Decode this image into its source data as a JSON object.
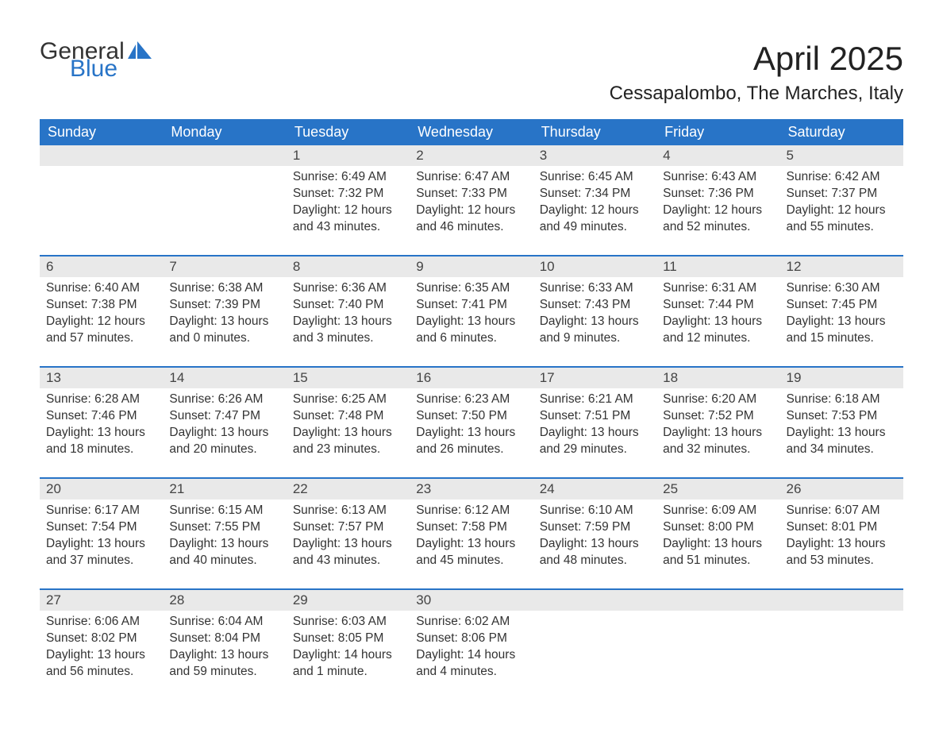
{
  "logo": {
    "word1": "General",
    "word2": "Blue",
    "color1": "#333333",
    "color2": "#2874c7"
  },
  "title": "April 2025",
  "location": "Cessapalombo, The Marches, Italy",
  "style": {
    "header_bg": "#2874c7",
    "header_text": "#ffffff",
    "daynum_bg": "#e9e9e9",
    "week_border": "#2874c7",
    "body_text": "#333333",
    "page_bg": "#ffffff",
    "title_fontsize": 42,
    "location_fontsize": 24,
    "header_fontsize": 18,
    "body_fontsize": 15.5
  },
  "columns": [
    "Sunday",
    "Monday",
    "Tuesday",
    "Wednesday",
    "Thursday",
    "Friday",
    "Saturday"
  ],
  "weeks": [
    [
      {
        "n": "",
        "lines": []
      },
      {
        "n": "",
        "lines": []
      },
      {
        "n": "1",
        "lines": [
          "Sunrise: 6:49 AM",
          "Sunset: 7:32 PM",
          "Daylight: 12 hours and 43 minutes."
        ]
      },
      {
        "n": "2",
        "lines": [
          "Sunrise: 6:47 AM",
          "Sunset: 7:33 PM",
          "Daylight: 12 hours and 46 minutes."
        ]
      },
      {
        "n": "3",
        "lines": [
          "Sunrise: 6:45 AM",
          "Sunset: 7:34 PM",
          "Daylight: 12 hours and 49 minutes."
        ]
      },
      {
        "n": "4",
        "lines": [
          "Sunrise: 6:43 AM",
          "Sunset: 7:36 PM",
          "Daylight: 12 hours and 52 minutes."
        ]
      },
      {
        "n": "5",
        "lines": [
          "Sunrise: 6:42 AM",
          "Sunset: 7:37 PM",
          "Daylight: 12 hours and 55 minutes."
        ]
      }
    ],
    [
      {
        "n": "6",
        "lines": [
          "Sunrise: 6:40 AM",
          "Sunset: 7:38 PM",
          "Daylight: 12 hours and 57 minutes."
        ]
      },
      {
        "n": "7",
        "lines": [
          "Sunrise: 6:38 AM",
          "Sunset: 7:39 PM",
          "Daylight: 13 hours and 0 minutes."
        ]
      },
      {
        "n": "8",
        "lines": [
          "Sunrise: 6:36 AM",
          "Sunset: 7:40 PM",
          "Daylight: 13 hours and 3 minutes."
        ]
      },
      {
        "n": "9",
        "lines": [
          "Sunrise: 6:35 AM",
          "Sunset: 7:41 PM",
          "Daylight: 13 hours and 6 minutes."
        ]
      },
      {
        "n": "10",
        "lines": [
          "Sunrise: 6:33 AM",
          "Sunset: 7:43 PM",
          "Daylight: 13 hours and 9 minutes."
        ]
      },
      {
        "n": "11",
        "lines": [
          "Sunrise: 6:31 AM",
          "Sunset: 7:44 PM",
          "Daylight: 13 hours and 12 minutes."
        ]
      },
      {
        "n": "12",
        "lines": [
          "Sunrise: 6:30 AM",
          "Sunset: 7:45 PM",
          "Daylight: 13 hours and 15 minutes."
        ]
      }
    ],
    [
      {
        "n": "13",
        "lines": [
          "Sunrise: 6:28 AM",
          "Sunset: 7:46 PM",
          "Daylight: 13 hours and 18 minutes."
        ]
      },
      {
        "n": "14",
        "lines": [
          "Sunrise: 6:26 AM",
          "Sunset: 7:47 PM",
          "Daylight: 13 hours and 20 minutes."
        ]
      },
      {
        "n": "15",
        "lines": [
          "Sunrise: 6:25 AM",
          "Sunset: 7:48 PM",
          "Daylight: 13 hours and 23 minutes."
        ]
      },
      {
        "n": "16",
        "lines": [
          "Sunrise: 6:23 AM",
          "Sunset: 7:50 PM",
          "Daylight: 13 hours and 26 minutes."
        ]
      },
      {
        "n": "17",
        "lines": [
          "Sunrise: 6:21 AM",
          "Sunset: 7:51 PM",
          "Daylight: 13 hours and 29 minutes."
        ]
      },
      {
        "n": "18",
        "lines": [
          "Sunrise: 6:20 AM",
          "Sunset: 7:52 PM",
          "Daylight: 13 hours and 32 minutes."
        ]
      },
      {
        "n": "19",
        "lines": [
          "Sunrise: 6:18 AM",
          "Sunset: 7:53 PM",
          "Daylight: 13 hours and 34 minutes."
        ]
      }
    ],
    [
      {
        "n": "20",
        "lines": [
          "Sunrise: 6:17 AM",
          "Sunset: 7:54 PM",
          "Daylight: 13 hours and 37 minutes."
        ]
      },
      {
        "n": "21",
        "lines": [
          "Sunrise: 6:15 AM",
          "Sunset: 7:55 PM",
          "Daylight: 13 hours and 40 minutes."
        ]
      },
      {
        "n": "22",
        "lines": [
          "Sunrise: 6:13 AM",
          "Sunset: 7:57 PM",
          "Daylight: 13 hours and 43 minutes."
        ]
      },
      {
        "n": "23",
        "lines": [
          "Sunrise: 6:12 AM",
          "Sunset: 7:58 PM",
          "Daylight: 13 hours and 45 minutes."
        ]
      },
      {
        "n": "24",
        "lines": [
          "Sunrise: 6:10 AM",
          "Sunset: 7:59 PM",
          "Daylight: 13 hours and 48 minutes."
        ]
      },
      {
        "n": "25",
        "lines": [
          "Sunrise: 6:09 AM",
          "Sunset: 8:00 PM",
          "Daylight: 13 hours and 51 minutes."
        ]
      },
      {
        "n": "26",
        "lines": [
          "Sunrise: 6:07 AM",
          "Sunset: 8:01 PM",
          "Daylight: 13 hours and 53 minutes."
        ]
      }
    ],
    [
      {
        "n": "27",
        "lines": [
          "Sunrise: 6:06 AM",
          "Sunset: 8:02 PM",
          "Daylight: 13 hours and 56 minutes."
        ]
      },
      {
        "n": "28",
        "lines": [
          "Sunrise: 6:04 AM",
          "Sunset: 8:04 PM",
          "Daylight: 13 hours and 59 minutes."
        ]
      },
      {
        "n": "29",
        "lines": [
          "Sunrise: 6:03 AM",
          "Sunset: 8:05 PM",
          "Daylight: 14 hours and 1 minute."
        ]
      },
      {
        "n": "30",
        "lines": [
          "Sunrise: 6:02 AM",
          "Sunset: 8:06 PM",
          "Daylight: 14 hours and 4 minutes."
        ]
      },
      {
        "n": "",
        "lines": []
      },
      {
        "n": "",
        "lines": []
      },
      {
        "n": "",
        "lines": []
      }
    ]
  ]
}
